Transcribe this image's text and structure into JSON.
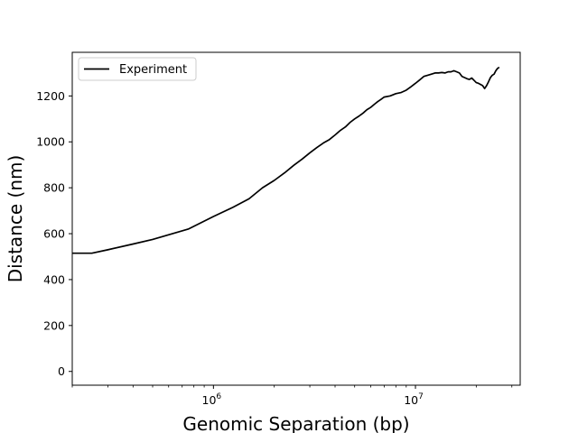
{
  "chart_data": {
    "type": "line",
    "title": "",
    "xlabel": "Genomic Separation (bp)",
    "ylabel": "Distance (nm)",
    "xscale": "log",
    "xlim": [
      200000,
      33000000
    ],
    "ylim": [
      -60,
      1390
    ],
    "grid": false,
    "legend_placement": "top-left",
    "x_ticks": [
      {
        "value": 1000000,
        "base": "10",
        "exp": "6"
      },
      {
        "value": 10000000,
        "base": "10",
        "exp": "7"
      }
    ],
    "y_ticks": [
      0,
      200,
      400,
      600,
      800,
      1000,
      1200
    ],
    "series": [
      {
        "name": "Experiment",
        "color": "#000000",
        "x": [
          200000,
          250000,
          300000,
          400000,
          500000,
          750000,
          1000000,
          1250000,
          1500000,
          1750000,
          2000000,
          2250000,
          2500000,
          2750000,
          3000000,
          3250000,
          3500000,
          3750000,
          4000000,
          4250000,
          4500000,
          4750000,
          5000000,
          5250000,
          5500000,
          5750000,
          6000000,
          6250000,
          6500000,
          6750000,
          7000000,
          7500000,
          8000000,
          8500000,
          9000000,
          9500000,
          10000000,
          10500000,
          11000000,
          11500000,
          12000000,
          12500000,
          13000000,
          13500000,
          14000000,
          14500000,
          15000000,
          15500000,
          16000000,
          16500000,
          17000000,
          17500000,
          18000000,
          18500000,
          19000000,
          19500000,
          20000000,
          20500000,
          21000000,
          21500000,
          22000000,
          22500000,
          23000000,
          23500000,
          24000000,
          24500000,
          25000000,
          25500000,
          26000000
        ],
        "y": [
          515,
          515,
          530,
          555,
          575,
          620,
          675,
          715,
          752,
          800,
          832,
          865,
          898,
          925,
          952,
          975,
          995,
          1010,
          1030,
          1050,
          1065,
          1085,
          1100,
          1112,
          1125,
          1140,
          1150,
          1163,
          1175,
          1185,
          1195,
          1200,
          1210,
          1215,
          1225,
          1240,
          1255,
          1270,
          1285,
          1290,
          1295,
          1300,
          1300,
          1302,
          1300,
          1305,
          1305,
          1310,
          1305,
          1300,
          1285,
          1280,
          1275,
          1272,
          1278,
          1268,
          1258,
          1255,
          1250,
          1245,
          1232,
          1245,
          1262,
          1280,
          1290,
          1295,
          1310,
          1320,
          1325
        ]
      }
    ]
  }
}
